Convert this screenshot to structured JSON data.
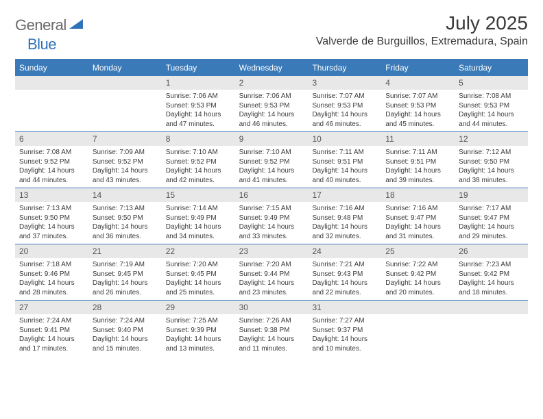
{
  "colors": {
    "accent": "#3b7ab8",
    "header_bg": "#3b7ab8",
    "daynum_bg": "#e8e8e8",
    "text": "#3a3a3a",
    "logo_gray": "#6a6a6a",
    "logo_blue": "#2f72b8",
    "background": "#ffffff"
  },
  "typography": {
    "month_title_size": 28,
    "location_size": 16,
    "dow_size": 12,
    "daynum_size": 12,
    "body_size": 10,
    "logo_size": 22,
    "font_family": "Arial"
  },
  "logo": {
    "general": "General",
    "blue": "Blue"
  },
  "title": "July 2025",
  "location": "Valverde de Burguillos, Extremadura, Spain",
  "dow": [
    "Sunday",
    "Monday",
    "Tuesday",
    "Wednesday",
    "Thursday",
    "Friday",
    "Saturday"
  ],
  "weeks": [
    [
      {
        "n": "",
        "sr": "",
        "ss": "",
        "dl": ""
      },
      {
        "n": "",
        "sr": "",
        "ss": "",
        "dl": ""
      },
      {
        "n": "1",
        "sr": "Sunrise: 7:06 AM",
        "ss": "Sunset: 9:53 PM",
        "dl": "Daylight: 14 hours and 47 minutes."
      },
      {
        "n": "2",
        "sr": "Sunrise: 7:06 AM",
        "ss": "Sunset: 9:53 PM",
        "dl": "Daylight: 14 hours and 46 minutes."
      },
      {
        "n": "3",
        "sr": "Sunrise: 7:07 AM",
        "ss": "Sunset: 9:53 PM",
        "dl": "Daylight: 14 hours and 46 minutes."
      },
      {
        "n": "4",
        "sr": "Sunrise: 7:07 AM",
        "ss": "Sunset: 9:53 PM",
        "dl": "Daylight: 14 hours and 45 minutes."
      },
      {
        "n": "5",
        "sr": "Sunrise: 7:08 AM",
        "ss": "Sunset: 9:53 PM",
        "dl": "Daylight: 14 hours and 44 minutes."
      }
    ],
    [
      {
        "n": "6",
        "sr": "Sunrise: 7:08 AM",
        "ss": "Sunset: 9:52 PM",
        "dl": "Daylight: 14 hours and 44 minutes."
      },
      {
        "n": "7",
        "sr": "Sunrise: 7:09 AM",
        "ss": "Sunset: 9:52 PM",
        "dl": "Daylight: 14 hours and 43 minutes."
      },
      {
        "n": "8",
        "sr": "Sunrise: 7:10 AM",
        "ss": "Sunset: 9:52 PM",
        "dl": "Daylight: 14 hours and 42 minutes."
      },
      {
        "n": "9",
        "sr": "Sunrise: 7:10 AM",
        "ss": "Sunset: 9:52 PM",
        "dl": "Daylight: 14 hours and 41 minutes."
      },
      {
        "n": "10",
        "sr": "Sunrise: 7:11 AM",
        "ss": "Sunset: 9:51 PM",
        "dl": "Daylight: 14 hours and 40 minutes."
      },
      {
        "n": "11",
        "sr": "Sunrise: 7:11 AM",
        "ss": "Sunset: 9:51 PM",
        "dl": "Daylight: 14 hours and 39 minutes."
      },
      {
        "n": "12",
        "sr": "Sunrise: 7:12 AM",
        "ss": "Sunset: 9:50 PM",
        "dl": "Daylight: 14 hours and 38 minutes."
      }
    ],
    [
      {
        "n": "13",
        "sr": "Sunrise: 7:13 AM",
        "ss": "Sunset: 9:50 PM",
        "dl": "Daylight: 14 hours and 37 minutes."
      },
      {
        "n": "14",
        "sr": "Sunrise: 7:13 AM",
        "ss": "Sunset: 9:50 PM",
        "dl": "Daylight: 14 hours and 36 minutes."
      },
      {
        "n": "15",
        "sr": "Sunrise: 7:14 AM",
        "ss": "Sunset: 9:49 PM",
        "dl": "Daylight: 14 hours and 34 minutes."
      },
      {
        "n": "16",
        "sr": "Sunrise: 7:15 AM",
        "ss": "Sunset: 9:49 PM",
        "dl": "Daylight: 14 hours and 33 minutes."
      },
      {
        "n": "17",
        "sr": "Sunrise: 7:16 AM",
        "ss": "Sunset: 9:48 PM",
        "dl": "Daylight: 14 hours and 32 minutes."
      },
      {
        "n": "18",
        "sr": "Sunrise: 7:16 AM",
        "ss": "Sunset: 9:47 PM",
        "dl": "Daylight: 14 hours and 31 minutes."
      },
      {
        "n": "19",
        "sr": "Sunrise: 7:17 AM",
        "ss": "Sunset: 9:47 PM",
        "dl": "Daylight: 14 hours and 29 minutes."
      }
    ],
    [
      {
        "n": "20",
        "sr": "Sunrise: 7:18 AM",
        "ss": "Sunset: 9:46 PM",
        "dl": "Daylight: 14 hours and 28 minutes."
      },
      {
        "n": "21",
        "sr": "Sunrise: 7:19 AM",
        "ss": "Sunset: 9:45 PM",
        "dl": "Daylight: 14 hours and 26 minutes."
      },
      {
        "n": "22",
        "sr": "Sunrise: 7:20 AM",
        "ss": "Sunset: 9:45 PM",
        "dl": "Daylight: 14 hours and 25 minutes."
      },
      {
        "n": "23",
        "sr": "Sunrise: 7:20 AM",
        "ss": "Sunset: 9:44 PM",
        "dl": "Daylight: 14 hours and 23 minutes."
      },
      {
        "n": "24",
        "sr": "Sunrise: 7:21 AM",
        "ss": "Sunset: 9:43 PM",
        "dl": "Daylight: 14 hours and 22 minutes."
      },
      {
        "n": "25",
        "sr": "Sunrise: 7:22 AM",
        "ss": "Sunset: 9:42 PM",
        "dl": "Daylight: 14 hours and 20 minutes."
      },
      {
        "n": "26",
        "sr": "Sunrise: 7:23 AM",
        "ss": "Sunset: 9:42 PM",
        "dl": "Daylight: 14 hours and 18 minutes."
      }
    ],
    [
      {
        "n": "27",
        "sr": "Sunrise: 7:24 AM",
        "ss": "Sunset: 9:41 PM",
        "dl": "Daylight: 14 hours and 17 minutes."
      },
      {
        "n": "28",
        "sr": "Sunrise: 7:24 AM",
        "ss": "Sunset: 9:40 PM",
        "dl": "Daylight: 14 hours and 15 minutes."
      },
      {
        "n": "29",
        "sr": "Sunrise: 7:25 AM",
        "ss": "Sunset: 9:39 PM",
        "dl": "Daylight: 14 hours and 13 minutes."
      },
      {
        "n": "30",
        "sr": "Sunrise: 7:26 AM",
        "ss": "Sunset: 9:38 PM",
        "dl": "Daylight: 14 hours and 11 minutes."
      },
      {
        "n": "31",
        "sr": "Sunrise: 7:27 AM",
        "ss": "Sunset: 9:37 PM",
        "dl": "Daylight: 14 hours and 10 minutes."
      },
      {
        "n": "",
        "sr": "",
        "ss": "",
        "dl": ""
      },
      {
        "n": "",
        "sr": "",
        "ss": "",
        "dl": ""
      }
    ]
  ]
}
